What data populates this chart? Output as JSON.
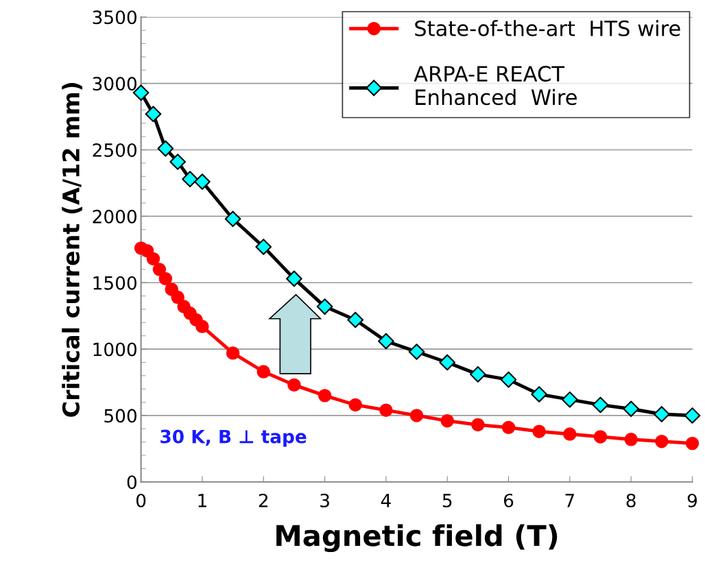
{
  "chart_data": {
    "type": "line",
    "xlabel": "Magnetic field (T)",
    "ylabel": "Critical current (A/12 mm)",
    "xlim": [
      0,
      9
    ],
    "xticks": [
      0,
      1,
      2,
      3,
      4,
      5,
      6,
      7,
      8,
      9
    ],
    "ylim": [
      0,
      3500
    ],
    "yticks": [
      0,
      500,
      1000,
      1500,
      2000,
      2500,
      3000,
      3500
    ],
    "grid": "y",
    "legend": "top right",
    "annotations": [
      "30 K, B ⊥ tape"
    ],
    "series": [
      {
        "name": "State-of-the-art  HTS wire",
        "color": "#ff0000",
        "marker": "circle",
        "x": [
          0,
          0.1,
          0.2,
          0.3,
          0.4,
          0.5,
          0.6,
          0.7,
          0.8,
          0.9,
          1,
          1.5,
          2,
          2.5,
          3,
          3.5,
          4,
          4.5,
          5,
          5.5,
          6,
          6.5,
          7,
          7.5,
          8,
          8.5,
          9
        ],
        "values": [
          1760,
          1740,
          1680,
          1600,
          1530,
          1450,
          1390,
          1320,
          1270,
          1220,
          1170,
          970,
          830,
          730,
          650,
          580,
          540,
          500,
          460,
          430,
          410,
          380,
          360,
          340,
          320,
          305,
          290
        ]
      },
      {
        "name": "ARPA-E REACT\nEnhanced  Wire",
        "color": "#000000",
        "colors": [
          "#00ffff",
          "#00ffff",
          "#00ffff",
          "#00ffff",
          "#00ffff",
          "#00ffff",
          "#00ffff",
          "#00ffff",
          "#00ffff",
          "#00ffff",
          "#00ffff",
          "#00ffff",
          "#00ffff",
          "#00ffff",
          "#00ffff",
          "#00ffff",
          "#00ffff",
          "#00ffff",
          "#00ffff",
          "#00ffff",
          "#00ffff",
          "#00ffff"
        ],
        "marker": "diamond",
        "x": [
          0,
          0.2,
          0.4,
          0.6,
          0.8,
          1,
          1.5,
          2,
          2.5,
          3,
          3.5,
          4,
          4.5,
          5,
          5.5,
          6,
          6.5,
          7,
          7.5,
          8,
          8.5,
          9
        ],
        "values": [
          2930,
          2770,
          2510,
          2410,
          2280,
          2260,
          1980,
          1770,
          1530,
          1320,
          1220,
          1060,
          980,
          900,
          810,
          770,
          660,
          620,
          580,
          550,
          510,
          500
        ]
      }
    ]
  }
}
